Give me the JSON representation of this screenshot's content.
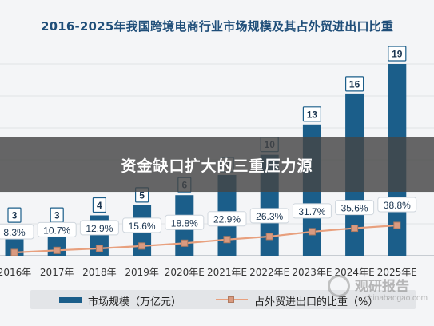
{
  "chart_data": {
    "type": "bar",
    "title": "2016-2025年我国跨境电商行业市场规模及其占外贸进出口比重",
    "categories": [
      "2016年",
      "2017年",
      "2018年",
      "2019年",
      "2020年E",
      "2021年E",
      "2022年E",
      "2023年E",
      "2024年E",
      "2025年E"
    ],
    "series": [
      {
        "name": "市场规模（万亿元）",
        "kind": "bar",
        "color": "#1b5e8a",
        "values": [
          3,
          3,
          4,
          5,
          6,
          8,
          10,
          13,
          16,
          19
        ]
      },
      {
        "name": "占外贸进出口的比重（%）",
        "kind": "line",
        "color": "#e8a07e",
        "values": [
          8.3,
          10.7,
          12.9,
          15.6,
          18.8,
          22.9,
          26.3,
          31.7,
          35.6,
          38.8
        ],
        "labels": [
          "8.3%",
          "10.7%",
          "12.9%",
          "15.6%",
          "18.8%",
          "22.9%",
          "26.3%",
          "31.7%",
          "35.6%",
          "38.8%"
        ]
      }
    ],
    "grid": true,
    "legend": "bottom"
  },
  "overlay_text": "资金缺口扩大的三重压力源",
  "watermark": {
    "text": "观研报告",
    "url": "chinabaogao.com"
  }
}
